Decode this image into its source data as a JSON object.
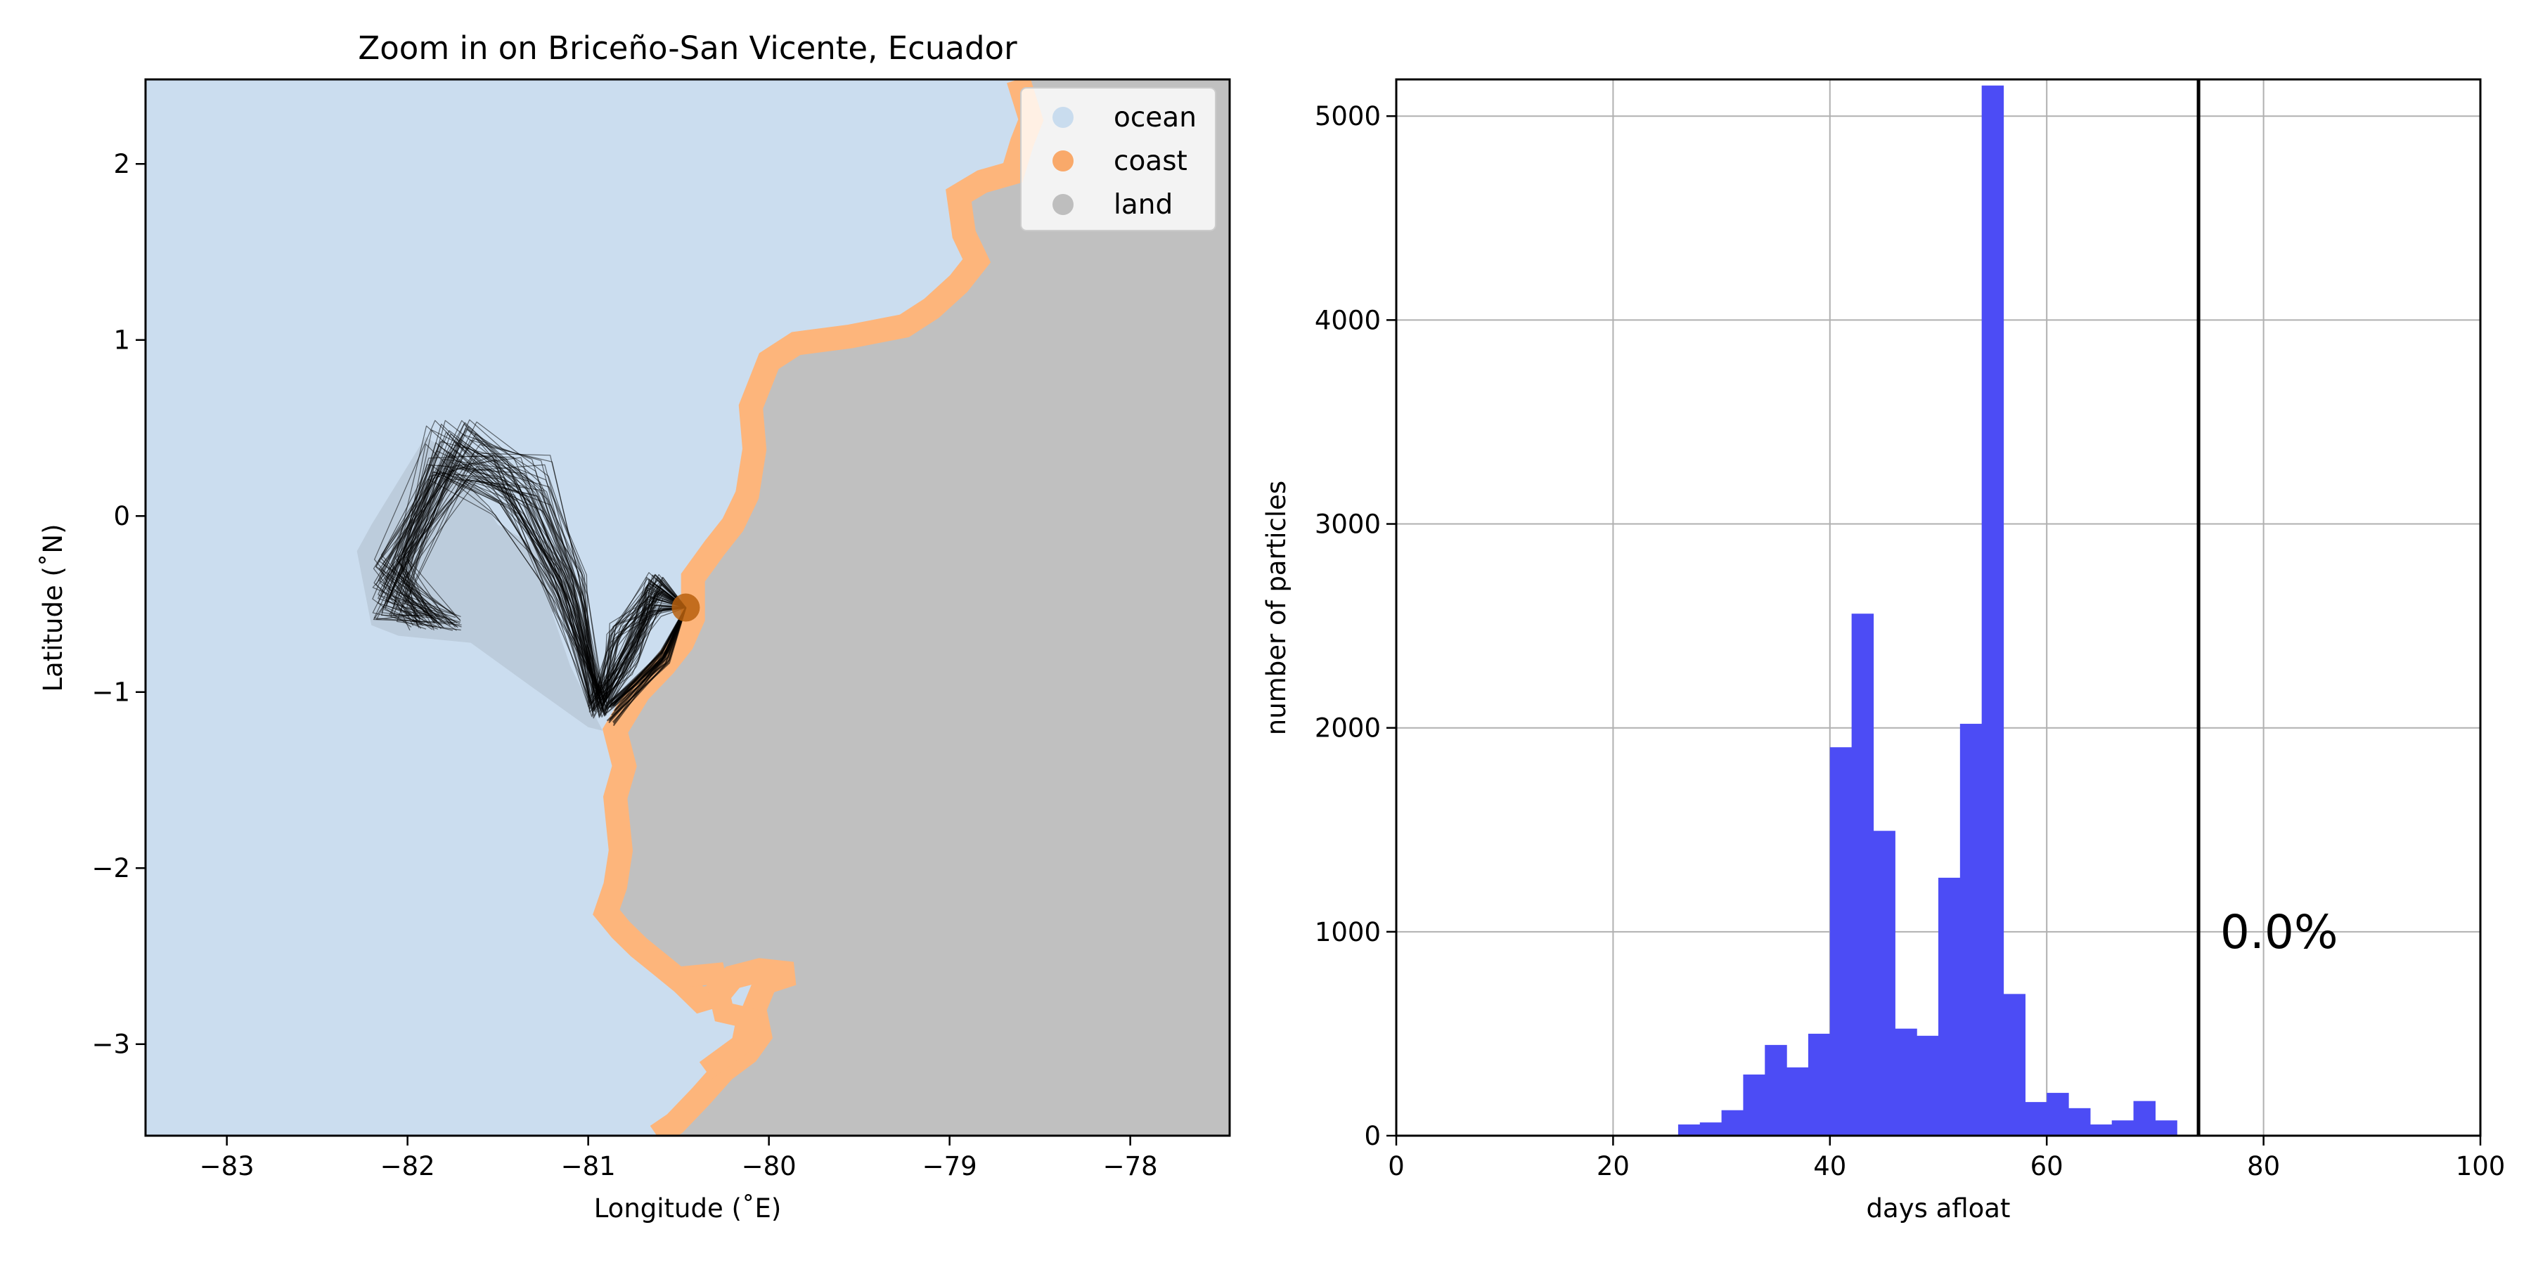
{
  "chart_data": [
    {
      "type": "map",
      "title": "Zoom in on Briceño-San Vicente, Ecuador",
      "xlabel": "Longitude (˚E)",
      "ylabel": "Latitude (˚N)",
      "xlim": [
        -83.45,
        -77.45
      ],
      "ylim": [
        -3.52,
        2.48
      ],
      "xticks": [
        -83,
        -82,
        -81,
        -80,
        -79,
        -78
      ],
      "yticks": [
        -3,
        -2,
        -1,
        0,
        1,
        2
      ],
      "xtick_labels": [
        "−83",
        "−82",
        "−81",
        "−80",
        "−79",
        "−78"
      ],
      "ytick_labels": [
        "−3",
        "−2",
        "−1",
        "0",
        "1",
        "2"
      ],
      "grid": false,
      "legend": {
        "placement": "top-right",
        "entries": [
          {
            "label": "ocean",
            "color": "#c9dcee"
          },
          {
            "label": "coast",
            "color": "#f9a96a"
          },
          {
            "label": "land",
            "color": "#bebebe"
          }
        ]
      },
      "colors": {
        "ocean": "#cbddef",
        "land": "#c0c0c0",
        "coast": "#fdb57b",
        "tracks": "#000000",
        "release_point": "#b8600e"
      },
      "release_point": {
        "lon": -80.46,
        "lat": -0.52
      },
      "coastline": [
        [
          -80.62,
          -3.52
        ],
        [
          -80.52,
          -3.45
        ],
        [
          -80.38,
          -3.3
        ],
        [
          -80.25,
          -3.15
        ],
        [
          -80.12,
          -3.05
        ],
        [
          -80.05,
          -2.95
        ],
        [
          -80.08,
          -2.8
        ],
        [
          -80.02,
          -2.65
        ],
        [
          -79.87,
          -2.6
        ],
        [
          -80.05,
          -2.58
        ],
        [
          -80.2,
          -2.62
        ],
        [
          -80.28,
          -2.72
        ],
        [
          -80.38,
          -2.75
        ],
        [
          -80.48,
          -2.65
        ],
        [
          -80.6,
          -2.55
        ],
        [
          -80.72,
          -2.45
        ],
        [
          -80.82,
          -2.35
        ],
        [
          -80.9,
          -2.25
        ],
        [
          -80.85,
          -2.1
        ],
        [
          -80.82,
          -1.9
        ],
        [
          -80.85,
          -1.6
        ],
        [
          -80.8,
          -1.42
        ],
        [
          -80.85,
          -1.22
        ],
        [
          -80.72,
          -1.0
        ],
        [
          -80.58,
          -0.85
        ],
        [
          -80.48,
          -0.72
        ],
        [
          -80.42,
          -0.58
        ],
        [
          -80.42,
          -0.35
        ],
        [
          -80.3,
          -0.18
        ],
        [
          -80.2,
          -0.05
        ],
        [
          -80.12,
          0.12
        ],
        [
          -80.08,
          0.38
        ],
        [
          -80.1,
          0.62
        ],
        [
          -80.0,
          0.88
        ],
        [
          -79.85,
          0.98
        ],
        [
          -79.55,
          1.02
        ],
        [
          -79.25,
          1.08
        ],
        [
          -79.1,
          1.18
        ],
        [
          -78.95,
          1.32
        ],
        [
          -78.85,
          1.45
        ],
        [
          -78.92,
          1.6
        ],
        [
          -78.95,
          1.82
        ],
        [
          -78.82,
          1.9
        ],
        [
          -78.65,
          1.95
        ],
        [
          -78.6,
          2.12
        ],
        [
          -78.55,
          2.25
        ],
        [
          -78.62,
          2.48
        ]
      ],
      "inlet": [
        [
          -80.5,
          -2.62
        ],
        [
          -80.3,
          -2.6
        ],
        [
          -80.25,
          -2.82
        ],
        [
          -80.12,
          -2.85
        ],
        [
          -80.15,
          -3.0
        ],
        [
          -80.35,
          -3.15
        ]
      ],
      "trajectory_envelope": [
        [
          -80.92,
          -1.22
        ],
        [
          -80.98,
          -1.1
        ],
        [
          -81.1,
          -0.85
        ],
        [
          -81.2,
          -0.55
        ],
        [
          -81.05,
          -0.45
        ],
        [
          -81.15,
          -0.25
        ],
        [
          -81.5,
          -0.05
        ],
        [
          -81.75,
          0.35
        ],
        [
          -81.9,
          0.45
        ],
        [
          -82.2,
          -0.05
        ],
        [
          -82.28,
          -0.2
        ],
        [
          -82.2,
          -0.62
        ],
        [
          -82.05,
          -0.68
        ],
        [
          -81.65,
          -0.72
        ],
        [
          -81.3,
          -0.98
        ],
        [
          -81.0,
          -1.2
        ]
      ]
    },
    {
      "type": "bar",
      "title": "",
      "xlabel": "days afloat",
      "ylabel": "number of particles",
      "xlim": [
        0,
        100
      ],
      "ylim": [
        0,
        5180
      ],
      "xticks": [
        0,
        20,
        40,
        60,
        80,
        100
      ],
      "yticks": [
        0,
        1000,
        2000,
        3000,
        4000,
        5000
      ],
      "grid": true,
      "bar_color": "#4c4cf5",
      "bin_width": 2,
      "bin_starts": [
        26,
        28,
        30,
        32,
        34,
        36,
        38,
        40,
        42,
        44,
        46,
        48,
        50,
        52,
        54,
        56,
        58,
        60,
        62,
        64,
        66,
        68,
        70
      ],
      "values": [
        55,
        65,
        125,
        300,
        445,
        335,
        500,
        1905,
        2560,
        1495,
        525,
        490,
        1265,
        2020,
        5150,
        695,
        165,
        210,
        135,
        55,
        75,
        170,
        75
      ],
      "vline": {
        "x": 74,
        "color": "#000000"
      },
      "annotation": {
        "text": "0.0%",
        "x": 76,
        "y": 1000
      }
    }
  ]
}
